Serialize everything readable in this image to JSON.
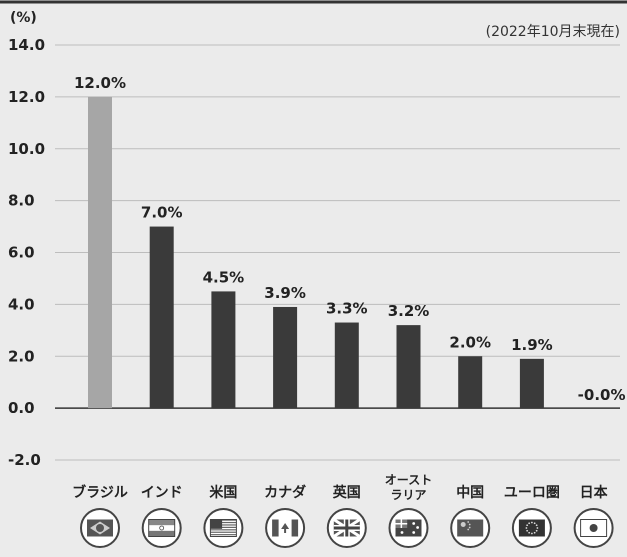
{
  "chart_data": {
    "type": "bar",
    "unit_label": "(%)",
    "as_of_note": "(2022年10月末現在)",
    "categories": [
      "ブラジル",
      "インド",
      "米国",
      "カナダ",
      "英国",
      "オースト\nラリア",
      "中国",
      "ユーロ圏",
      "日本"
    ],
    "values": [
      12.0,
      7.0,
      4.5,
      3.9,
      3.3,
      3.2,
      2.0,
      1.9,
      -0.0
    ],
    "value_labels": [
      "12.0%",
      "7.0%",
      "4.5%",
      "3.9%",
      "3.3%",
      "3.2%",
      "2.0%",
      "1.9%",
      "-0.0%"
    ],
    "bar_colors": [
      "#a6a6a6",
      "#3a3a3a",
      "#3a3a3a",
      "#3a3a3a",
      "#3a3a3a",
      "#3a3a3a",
      "#3a3a3a",
      "#3a3a3a",
      "#3a3a3a"
    ],
    "flag_icons": [
      "brazil-flag-icon",
      "india-flag-icon",
      "usa-flag-icon",
      "canada-flag-icon",
      "uk-flag-icon",
      "australia-flag-icon",
      "china-flag-icon",
      "eu-flag-icon",
      "japan-flag-icon"
    ],
    "yticks": [
      "14.0",
      "12.0",
      "10.0",
      "8.0",
      "6.0",
      "4.0",
      "2.0",
      "0.0",
      "-2.0"
    ],
    "ylim": [
      -2.0,
      14.0
    ],
    "grid": true
  }
}
